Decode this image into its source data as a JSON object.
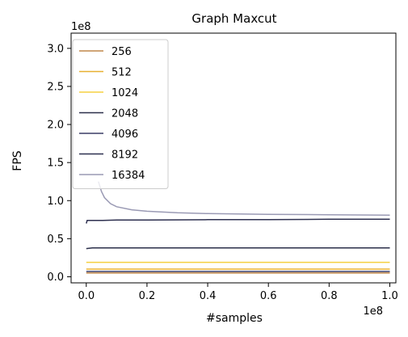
{
  "chart_data": {
    "type": "line",
    "title": "Graph Maxcut",
    "xlabel": "#samples",
    "ylabel": "FPS",
    "x_offset_label": "1e8",
    "y_offset_label": "1e8",
    "xlim": [
      -0.05,
      1.02
    ],
    "ylim": [
      -0.08,
      3.2
    ],
    "x_ticks": [
      0.0,
      0.2,
      0.4,
      0.6,
      0.8,
      1.0
    ],
    "x_tick_labels": [
      "0.0",
      "0.2",
      "0.4",
      "0.6",
      "0.8",
      "1.0"
    ],
    "y_ticks": [
      0.0,
      0.5,
      1.0,
      1.5,
      2.0,
      2.5,
      3.0
    ],
    "y_tick_labels": [
      "0.0",
      "0.5",
      "1.0",
      "1.5",
      "2.0",
      "2.5",
      "3.0"
    ],
    "grid": false,
    "legend_position": "upper-left",
    "series": [
      {
        "name": "256",
        "color": "#c0874a",
        "x": [
          0.0,
          0.02,
          0.05,
          0.1,
          0.2,
          0.4,
          0.6,
          0.8,
          1.0
        ],
        "y": [
          0.05,
          0.05,
          0.05,
          0.05,
          0.05,
          0.05,
          0.05,
          0.05,
          0.05
        ]
      },
      {
        "name": "512",
        "color": "#e8b030",
        "x": [
          0.0,
          0.02,
          0.05,
          0.1,
          0.2,
          0.4,
          0.6,
          0.8,
          1.0
        ],
        "y": [
          0.1,
          0.1,
          0.1,
          0.1,
          0.1,
          0.1,
          0.1,
          0.1,
          0.1
        ]
      },
      {
        "name": "1024",
        "color": "#f5d040",
        "x": [
          0.0,
          0.02,
          0.05,
          0.1,
          0.2,
          0.4,
          0.6,
          0.8,
          1.0
        ],
        "y": [
          0.19,
          0.19,
          0.19,
          0.19,
          0.19,
          0.19,
          0.19,
          0.19,
          0.19
        ]
      },
      {
        "name": "2048",
        "color": "#2b2f4a",
        "x": [
          0.0,
          0.02,
          0.05,
          0.1,
          0.2,
          0.4,
          0.6,
          0.8,
          1.0
        ],
        "y": [
          0.37,
          0.38,
          0.38,
          0.38,
          0.38,
          0.38,
          0.38,
          0.38,
          0.38
        ]
      },
      {
        "name": "4096",
        "color": "#3a3d66",
        "x": [
          0.0,
          0.02,
          0.05,
          0.1,
          0.2,
          0.4,
          0.6,
          0.8,
          1.0
        ],
        "y": [
          0.07,
          0.07,
          0.07,
          0.07,
          0.07,
          0.07,
          0.07,
          0.07,
          0.07
        ]
      },
      {
        "name": "8192",
        "color": "#2e3050",
        "x": [
          0.0,
          0.003,
          0.01,
          0.05,
          0.1,
          0.2,
          0.4,
          0.6,
          0.8,
          1.0
        ],
        "y": [
          0.7,
          0.74,
          0.74,
          0.74,
          0.745,
          0.745,
          0.75,
          0.75,
          0.755,
          0.755
        ]
      },
      {
        "name": "16384",
        "color": "#9a9ab4",
        "x": [
          0.04,
          0.05,
          0.06,
          0.08,
          0.1,
          0.15,
          0.2,
          0.3,
          0.4,
          0.6,
          0.8,
          1.0
        ],
        "y": [
          1.25,
          1.12,
          1.04,
          0.96,
          0.92,
          0.88,
          0.86,
          0.84,
          0.83,
          0.82,
          0.815,
          0.81
        ]
      }
    ]
  }
}
